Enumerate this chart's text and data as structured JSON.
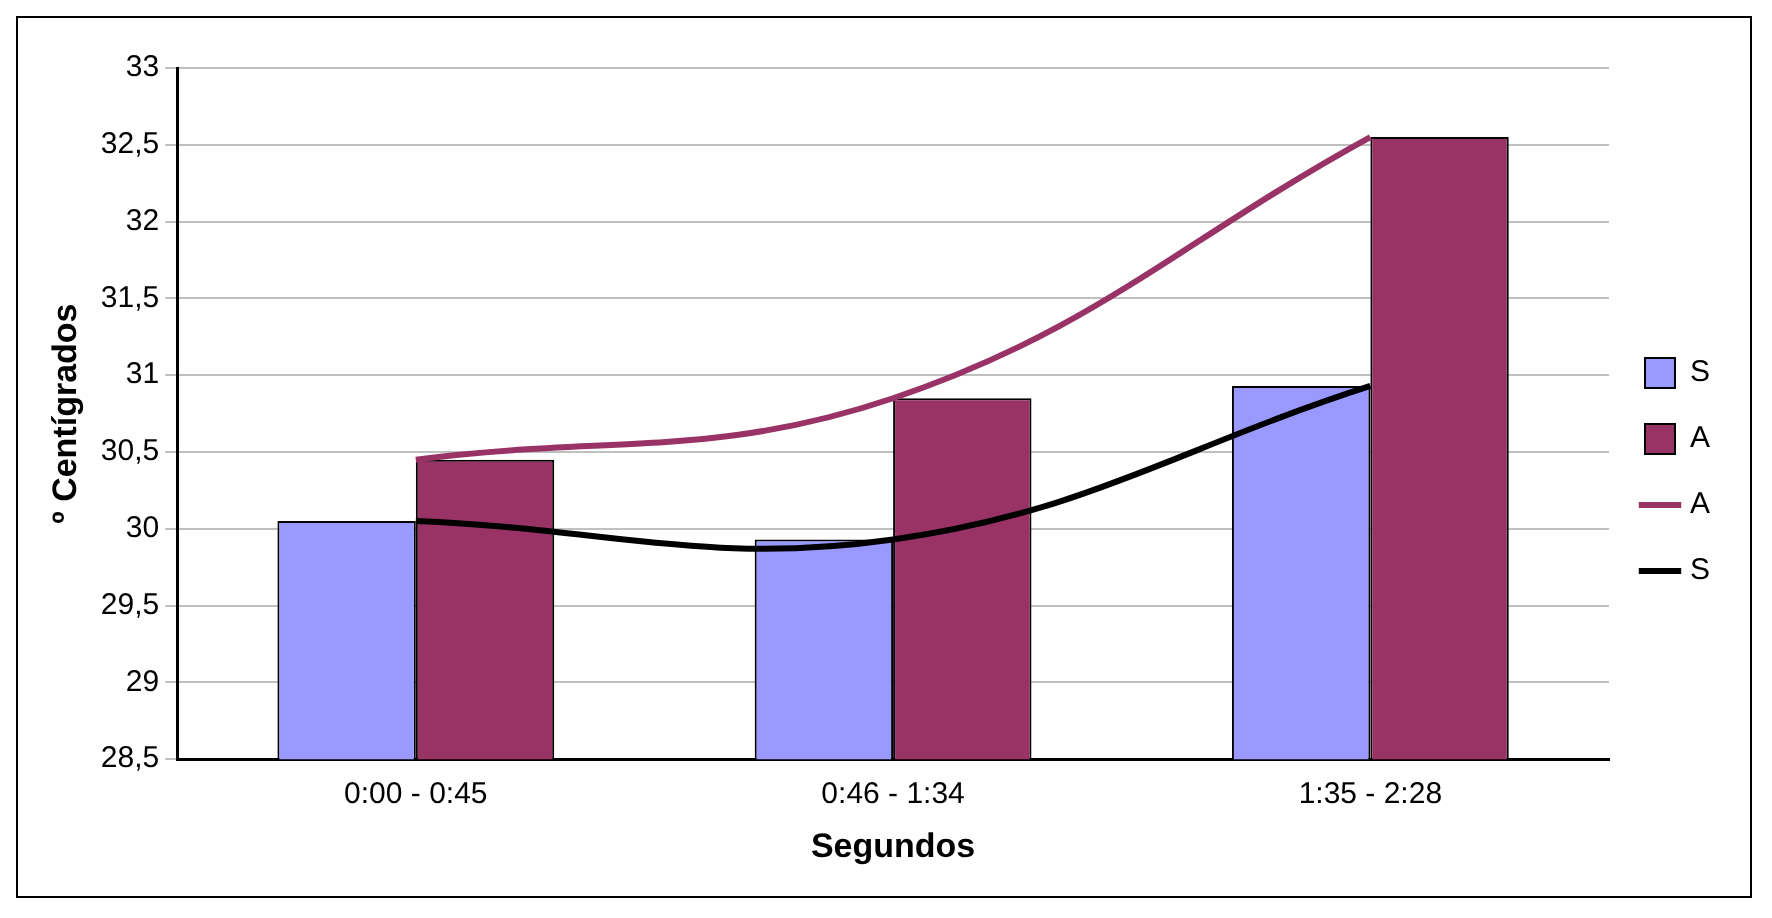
{
  "chart_data": {
    "type": "bar",
    "xlabel": "Segundos",
    "ylabel": "º Centígrados",
    "categories": [
      "0:00 - 0:45",
      "0:46 - 1:34",
      "1:35 - 2:28"
    ],
    "series": [
      {
        "name": "S",
        "color": "#9999ff",
        "values": [
          30.05,
          29.93,
          30.93
        ]
      },
      {
        "name": "A",
        "color": "#993366",
        "values": [
          30.45,
          30.85,
          32.55
        ]
      },
      {
        "name": "A",
        "type": "line",
        "color": "#993366",
        "values": [
          30.45,
          30.85,
          32.55
        ]
      },
      {
        "name": "S",
        "type": "line",
        "color": "#000000",
        "values": [
          30.05,
          29.93,
          30.93
        ]
      }
    ],
    "ylim": [
      28.5,
      33
    ],
    "yticks": [
      {
        "value": 28.5,
        "label": "28,5"
      },
      29,
      {
        "value": 29.5,
        "label": "29,5"
      },
      30,
      {
        "value": 30.5,
        "label": "30,5"
      },
      31,
      {
        "value": 31.5,
        "label": "31,5"
      },
      32,
      {
        "value": 32.5,
        "label": "32,5"
      },
      33
    ],
    "grid": "y",
    "legend": "right",
    "marker": "none",
    "line_style": "solid"
  }
}
